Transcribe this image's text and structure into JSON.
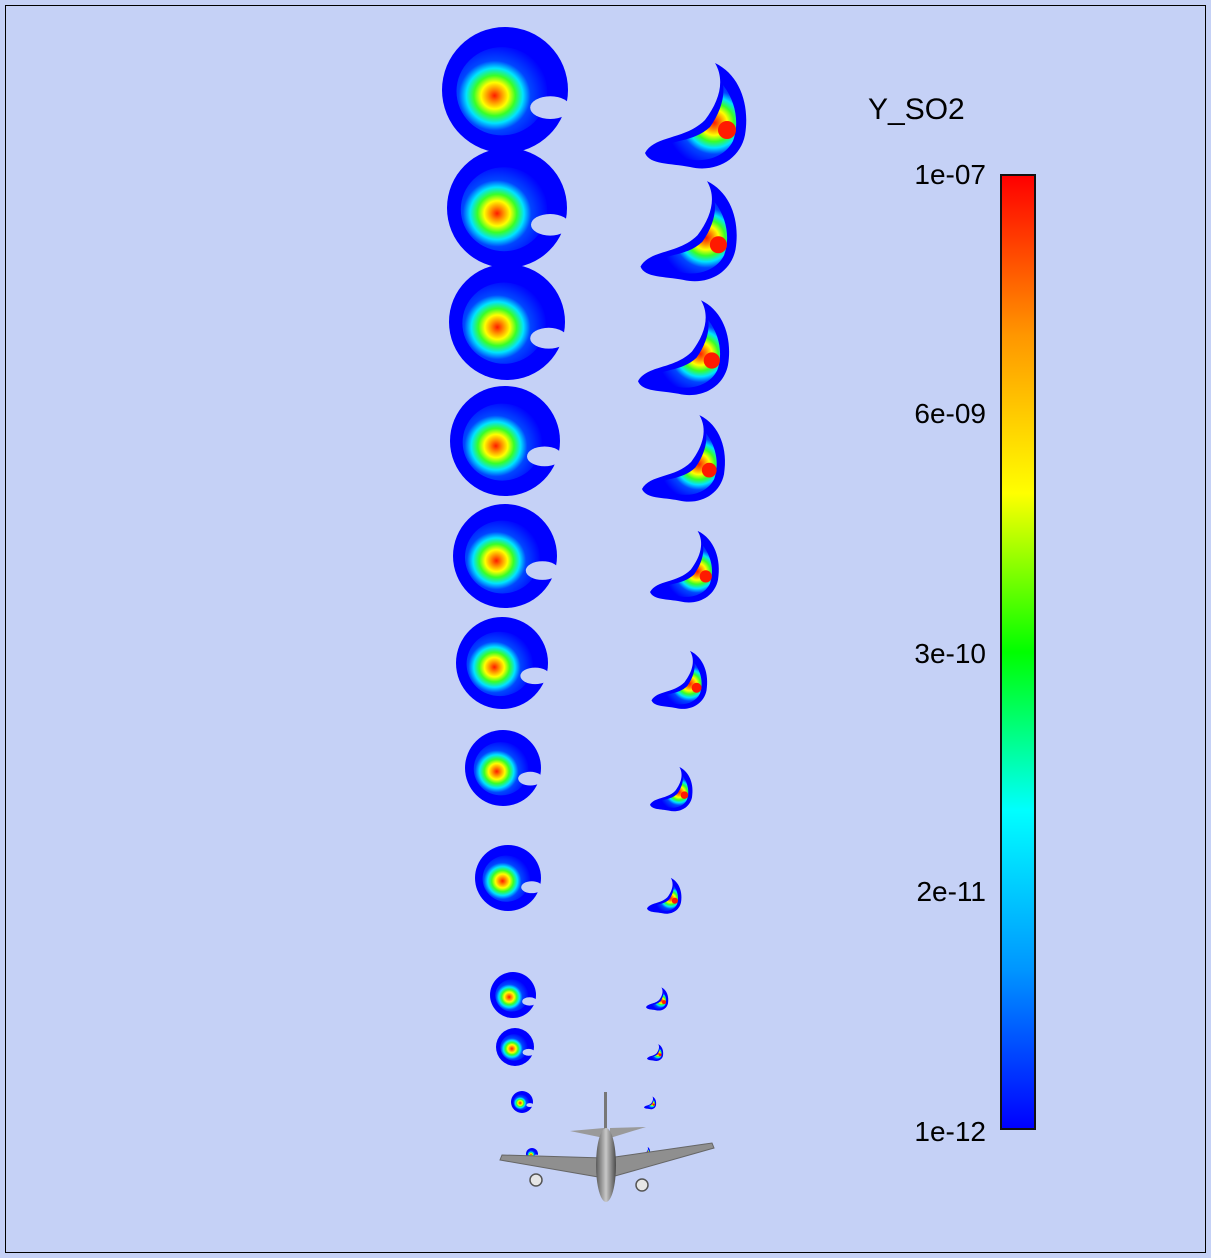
{
  "figure": {
    "background_color": "#c5d1f6",
    "content": "SO2 mass fraction cross-sections in aircraft wake vortex (contour slices), with aircraft silhouette at bottom"
  },
  "legend": {
    "title": "Y_SO2",
    "scale": "log",
    "ticks": [
      "1e-07",
      "6e-09",
      "3e-10",
      "2e-11",
      "1e-12"
    ],
    "colormap": [
      "#0000ff",
      "#0096ff",
      "#00ffff",
      "#00ff00",
      "#ffff00",
      "#ff9600",
      "#ff0000"
    ],
    "min": "1e-12",
    "max": "1e-07"
  },
  "slices": {
    "left_column_count": 12,
    "right_column_count": 12
  },
  "aircraft": {
    "icon": "airplane-icon"
  }
}
